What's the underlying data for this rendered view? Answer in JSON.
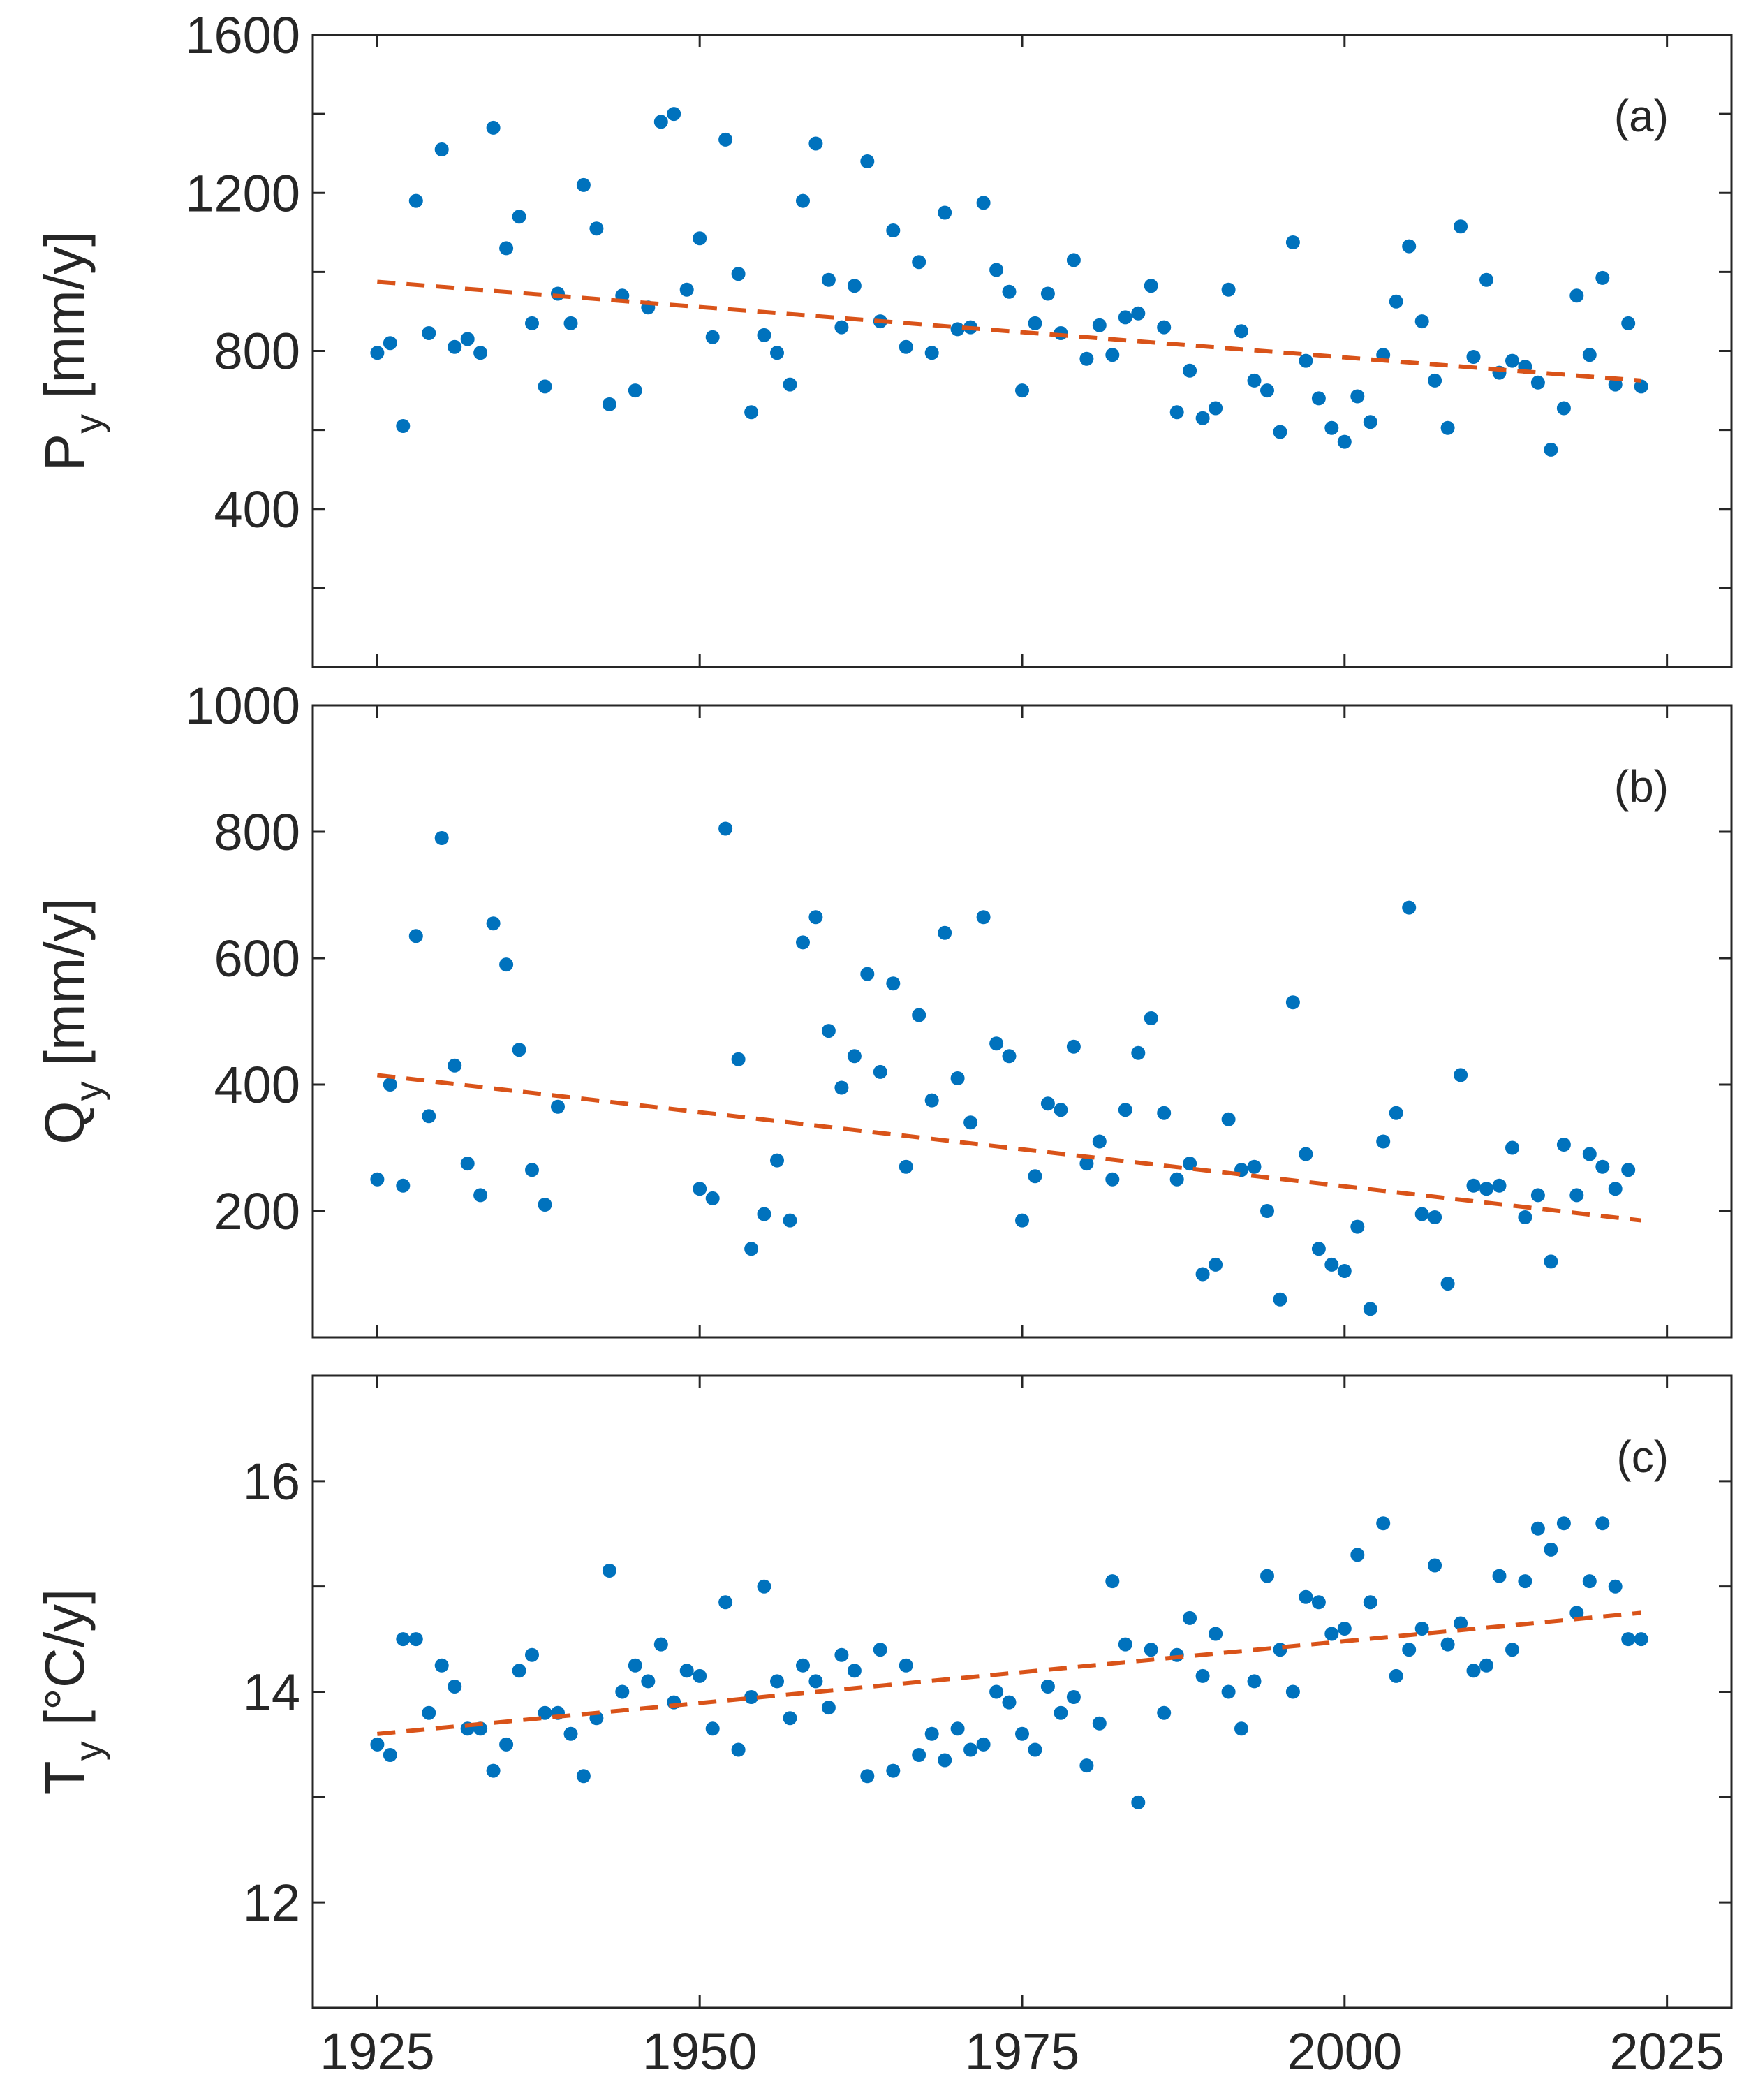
{
  "colors": {
    "points": "#0072BD",
    "trend": "#D95319",
    "axes": "#262626",
    "background": "#ffffff"
  },
  "chart_data": [
    {
      "id": "a",
      "type": "scatter",
      "panel_label": "(a)",
      "ylabel": "P",
      "ylabel_sub": "y",
      "ylabel_unit": " [mm/y]",
      "xlim": [
        1920,
        2030
      ],
      "ylim": [
        0,
        1600
      ],
      "yticks": [
        0,
        200,
        400,
        600,
        800,
        1000,
        1200,
        1400,
        1600
      ],
      "ytick_labels": [
        "",
        "",
        "400",
        "",
        "800",
        "",
        "1200",
        "",
        "1600"
      ],
      "xticks": [
        1925,
        1950,
        1975,
        2000,
        2025
      ],
      "show_xtick_labels": false,
      "x": [
        1925,
        1926,
        1927,
        1928,
        1929,
        1930,
        1931,
        1932,
        1933,
        1934,
        1935,
        1936,
        1937,
        1938,
        1939,
        1940,
        1941,
        1942,
        1943,
        1944,
        1945,
        1946,
        1947,
        1948,
        1949,
        1950,
        1951,
        1952,
        1953,
        1954,
        1955,
        1956,
        1957,
        1958,
        1959,
        1960,
        1961,
        1962,
        1963,
        1964,
        1965,
        1966,
        1967,
        1968,
        1969,
        1970,
        1971,
        1972,
        1973,
        1974,
        1975,
        1976,
        1977,
        1978,
        1979,
        1980,
        1981,
        1982,
        1983,
        1984,
        1985,
        1986,
        1987,
        1988,
        1989,
        1990,
        1991,
        1992,
        1993,
        1994,
        1995,
        1996,
        1997,
        1998,
        1999,
        2000,
        2001,
        2002,
        2003,
        2004,
        2005,
        2006,
        2007,
        2008,
        2009,
        2010,
        2011,
        2012,
        2013,
        2014,
        2015,
        2016,
        2017,
        2018,
        2019,
        2020,
        2021,
        2022,
        2023
      ],
      "y": [
        795,
        820,
        610,
        1180,
        845,
        1310,
        810,
        830,
        795,
        1365,
        1060,
        1140,
        870,
        710,
        945,
        870,
        1220,
        1110,
        665,
        940,
        700,
        910,
        1380,
        1400,
        955,
        1085,
        835,
        1335,
        995,
        645,
        840,
        795,
        715,
        1180,
        1325,
        980,
        860,
        965,
        1280,
        875,
        1105,
        810,
        1025,
        795,
        1150,
        855,
        860,
        1175,
        1005,
        950,
        700,
        870,
        945,
        845,
        1030,
        780,
        865,
        790,
        885,
        895,
        965,
        860,
        645,
        750,
        630,
        655,
        955,
        850,
        725,
        700,
        595,
        1075,
        775,
        680,
        605,
        570,
        685,
        620,
        790,
        925,
        1065,
        875,
        725,
        605,
        1115,
        785,
        980,
        745,
        775,
        760,
        720,
        550,
        655,
        940,
        790,
        985,
        715,
        870,
        710
      ],
      "trend": {
        "x": [
          1925,
          2023
        ],
        "y": [
          975,
          725
        ]
      }
    },
    {
      "id": "b",
      "type": "scatter",
      "panel_label": "(b)",
      "ylabel": "Q",
      "ylabel_sub": "y",
      "ylabel_unit": " [mm/y]",
      "xlim": [
        1920,
        2030
      ],
      "ylim": [
        0,
        1000
      ],
      "yticks": [
        200,
        400,
        600,
        800,
        1000
      ],
      "ytick_labels": [
        "200",
        "400",
        "600",
        "800",
        "1000"
      ],
      "xticks": [
        1925,
        1950,
        1975,
        2000,
        2025
      ],
      "show_xtick_labels": false,
      "x": [
        1925,
        1926,
        1927,
        1928,
        1929,
        1930,
        1931,
        1932,
        1933,
        1934,
        1935,
        1936,
        1937,
        1938,
        1939,
        1950,
        1951,
        1952,
        1953,
        1954,
        1955,
        1956,
        1957,
        1958,
        1959,
        1960,
        1961,
        1962,
        1963,
        1964,
        1965,
        1966,
        1967,
        1968,
        1969,
        1970,
        1971,
        1972,
        1973,
        1974,
        1975,
        1976,
        1977,
        1978,
        1979,
        1980,
        1981,
        1982,
        1983,
        1984,
        1985,
        1986,
        1987,
        1988,
        1989,
        1990,
        1991,
        1992,
        1993,
        1994,
        1995,
        1996,
        1997,
        1998,
        1999,
        2000,
        2001,
        2002,
        2003,
        2004,
        2005,
        2006,
        2007,
        2008,
        2009,
        2010,
        2011,
        2012,
        2013,
        2014,
        2015,
        2016,
        2017,
        2018,
        2019,
        2020,
        2021,
        2022
      ],
      "y": [
        250,
        400,
        240,
        635,
        350,
        790,
        430,
        275,
        225,
        655,
        590,
        455,
        265,
        210,
        365,
        235,
        220,
        805,
        440,
        140,
        195,
        280,
        185,
        625,
        665,
        485,
        395,
        445,
        575,
        420,
        560,
        270,
        510,
        375,
        640,
        410,
        340,
        665,
        465,
        445,
        185,
        255,
        370,
        360,
        460,
        275,
        310,
        250,
        360,
        450,
        505,
        355,
        250,
        275,
        100,
        115,
        345,
        265,
        270,
        200,
        60,
        530,
        290,
        140,
        115,
        105,
        175,
        45,
        310,
        355,
        680,
        195,
        190,
        85,
        415,
        240,
        235,
        240,
        300,
        190,
        225,
        120,
        305,
        225,
        290,
        270,
        235,
        265
      ],
      "trend": {
        "x": [
          1925,
          2023
        ],
        "y": [
          415,
          185
        ]
      }
    },
    {
      "id": "c",
      "type": "scatter",
      "panel_label": "(c)",
      "ylabel": "T",
      "ylabel_sub": "y",
      "ylabel_unit": " [°C/y]",
      "xlim": [
        1920,
        2030
      ],
      "ylim": [
        11,
        17
      ],
      "yticks": [
        12,
        13,
        14,
        15,
        16,
        17
      ],
      "ytick_labels": [
        "12",
        "",
        "14",
        "",
        "16",
        ""
      ],
      "xticks": [
        1925,
        1950,
        1975,
        2000,
        2025
      ],
      "xtick_labels": [
        "1925",
        "1950",
        "1975",
        "2000",
        "2025"
      ],
      "show_xtick_labels": true,
      "x": [
        1925,
        1926,
        1927,
        1928,
        1929,
        1930,
        1931,
        1932,
        1933,
        1934,
        1935,
        1936,
        1937,
        1938,
        1939,
        1940,
        1941,
        1942,
        1943,
        1944,
        1945,
        1946,
        1947,
        1948,
        1949,
        1950,
        1951,
        1952,
        1953,
        1954,
        1955,
        1956,
        1957,
        1958,
        1959,
        1960,
        1961,
        1962,
        1963,
        1964,
        1965,
        1966,
        1967,
        1968,
        1969,
        1970,
        1971,
        1972,
        1973,
        1974,
        1975,
        1976,
        1977,
        1978,
        1979,
        1980,
        1981,
        1982,
        1983,
        1984,
        1985,
        1986,
        1987,
        1988,
        1989,
        1990,
        1991,
        1992,
        1993,
        1994,
        1995,
        1996,
        1997,
        1998,
        1999,
        2000,
        2001,
        2002,
        2003,
        2004,
        2005,
        2006,
        2007,
        2008,
        2009,
        2010,
        2011,
        2012,
        2013,
        2014,
        2015,
        2016,
        2017,
        2018,
        2019,
        2020,
        2021,
        2022,
        2023
      ],
      "y": [
        13.5,
        13.4,
        14.5,
        14.5,
        13.8,
        14.25,
        14.05,
        13.65,
        13.65,
        13.25,
        13.5,
        14.2,
        14.35,
        13.8,
        13.8,
        13.6,
        13.2,
        13.75,
        15.15,
        14.0,
        14.25,
        14.1,
        14.45,
        13.9,
        14.2,
        14.15,
        13.65,
        14.85,
        13.45,
        13.95,
        15.0,
        14.1,
        13.75,
        14.25,
        14.1,
        13.85,
        14.35,
        14.2,
        13.2,
        14.4,
        13.25,
        14.25,
        13.4,
        13.6,
        13.35,
        13.65,
        13.45,
        13.5,
        14.0,
        13.9,
        13.6,
        13.45,
        14.05,
        13.8,
        13.95,
        13.3,
        13.7,
        15.05,
        14.45,
        12.95,
        14.4,
        13.8,
        14.35,
        14.7,
        14.15,
        14.55,
        14.0,
        13.65,
        14.1,
        15.1,
        14.4,
        14.0,
        14.9,
        14.85,
        14.55,
        14.6,
        15.3,
        14.85,
        15.6,
        14.15,
        14.4,
        14.6,
        15.2,
        14.45,
        14.65,
        14.2,
        14.25,
        15.1,
        14.4,
        15.05,
        15.55,
        15.35,
        15.6,
        14.75,
        15.05,
        15.6,
        15.0,
        14.5,
        14.5
      ],
      "trend": {
        "x": [
          1925,
          2023
        ],
        "y": [
          13.6,
          14.75
        ]
      }
    }
  ]
}
